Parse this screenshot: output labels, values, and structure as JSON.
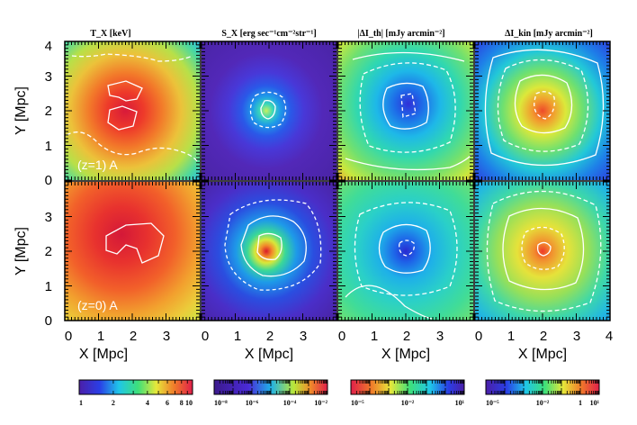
{
  "chart_data": {
    "type": "heatmap",
    "columns": [
      {
        "title": "T_X [keV]"
      },
      {
        "title": "S_X [erg sec⁻¹cm⁻²str⁻¹]"
      },
      {
        "title": "|ΔI_th| [mJy arcmin⁻²]"
      },
      {
        "title": "ΔI_kin [mJy arcmin⁻²]"
      }
    ],
    "rows": [
      {
        "annotation": "(z=1) A"
      },
      {
        "annotation": "(z=0) A"
      }
    ],
    "xlabel": "X [Mpc]",
    "ylabel": "Y [Mpc]",
    "xlim": [
      0,
      4
    ],
    "ylim": [
      0,
      4
    ],
    "x_ticks": [
      "0",
      "1",
      "2",
      "3"
    ],
    "x_ticks_last": [
      "0",
      "1",
      "2",
      "3",
      "4"
    ],
    "y_ticks": [
      "0",
      "1",
      "2",
      "3",
      "4"
    ],
    "colorbars": [
      {
        "scale": "log",
        "min": 1,
        "max": 10,
        "tick_values": [
          1,
          2,
          4,
          6,
          8,
          10
        ],
        "tick_labels": [
          "1",
          "2",
          "4",
          "6",
          "8",
          "10"
        ],
        "colormap": "rainbow"
      },
      {
        "scale": "log",
        "min": 1e-08,
        "max": 0.01,
        "tick_values": [
          1e-08,
          1e-06,
          0.0001,
          0.01
        ],
        "tick_labels": [
          "10⁻⁸",
          "10⁻⁶",
          "10⁻⁴",
          "10⁻²"
        ],
        "colormap": "dark-rainbow"
      },
      {
        "scale": "log",
        "min": 1e-05,
        "max": 10,
        "tick_values": [
          1e-05,
          0.01,
          10
        ],
        "tick_labels": [
          "10⁻⁵",
          "10⁻²",
          "10¹"
        ],
        "colormap": "rainbow-reversed"
      },
      {
        "scale": "log",
        "min": 1e-05,
        "max": 10,
        "tick_values": [
          1e-05,
          0.01,
          1,
          10
        ],
        "tick_labels": [
          "10⁻⁵",
          "10⁻²",
          "1",
          "10¹"
        ],
        "colormap": "rainbow"
      }
    ]
  }
}
